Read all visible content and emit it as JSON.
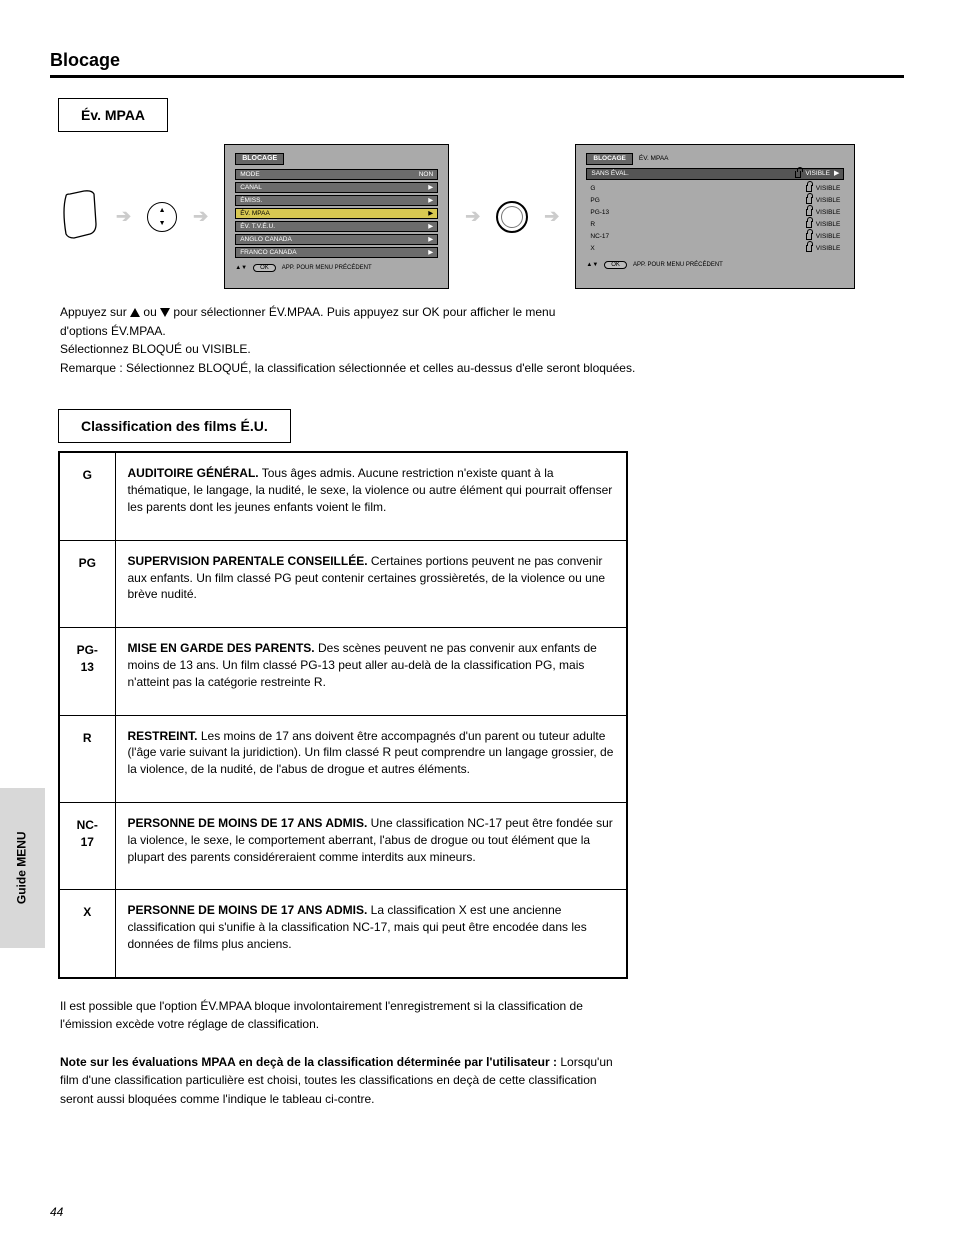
{
  "page": {
    "title": "Blocage",
    "side_tab": "Guide MENU",
    "page_number": "44"
  },
  "sections": {
    "mpaa_label": "Év. MPAA",
    "ratings_label": "Classification des films É.U."
  },
  "screen_a": {
    "title": "BLOCAGE",
    "items": [
      {
        "label": "MODE",
        "value": "NON"
      },
      {
        "label": "CANAL",
        "value": "▶"
      },
      {
        "label": "ÉMISS.",
        "value": "▶"
      },
      {
        "label": "ÉV. MPAA",
        "value": "▶",
        "selected": true
      },
      {
        "label": "ÉV. T.V.É.U.",
        "value": "▶"
      },
      {
        "label": "ANGLO CANADA",
        "value": "▶"
      },
      {
        "label": "FRANCO CANADA",
        "value": "▶"
      }
    ],
    "bottom_hint": "APP. POUR MENU PRÉCÉDENT",
    "bottom_ok": "OK"
  },
  "screen_b": {
    "breadcrumb": "BLOCAGE",
    "subtitle": "ÉV. MPAA",
    "head": "SANS ÉVAL.",
    "items": [
      {
        "label": "G",
        "value": "VISIBLE"
      },
      {
        "label": "PG",
        "value": "VISIBLE"
      },
      {
        "label": "PG-13",
        "value": "VISIBLE"
      },
      {
        "label": "R",
        "value": "VISIBLE"
      },
      {
        "label": "NC-17",
        "value": "VISIBLE"
      },
      {
        "label": "X",
        "value": "VISIBLE"
      }
    ],
    "bottom_hint": "APP. POUR MENU PRÉCÉDENT",
    "bottom_ok": "OK"
  },
  "instruction": {
    "l1_a": "Appuyez sur ",
    "l1_b": " ou ",
    "l1_c": " pour sélectionner ÉV.MPAA. Puis appuyez sur OK pour afficher le menu",
    "l2": "d'options ÉV.MPAA.",
    "l3": "Sélectionnez BLOQUÉ ou VISIBLE.",
    "l4": "Remarque : Sélectionnez BLOQUÉ, la classification sélectionnée et celles au-dessus d'elle seront bloquées."
  },
  "ratings": [
    {
      "code": "G",
      "title": "AUDITOIRE GÉNÉRAL.",
      "desc": " Tous âges admis. Aucune restriction n'existe quant à la thématique, le langage, la nudité, le sexe, la violence ou autre élément qui pourrait offenser les parents dont les jeunes enfants voient le film."
    },
    {
      "code": "PG",
      "title": "SUPERVISION PARENTALE CONSEILLÉE.",
      "desc": " Certaines portions peuvent ne pas convenir aux enfants. Un film classé PG peut contenir certaines grossièretés, de la violence ou une brève nudité."
    },
    {
      "code": "PG-13",
      "title": "MISE EN GARDE DES PARENTS.",
      "desc": " Des scènes peuvent ne pas convenir aux enfants de moins de 13 ans. Un film classé PG-13 peut aller au-delà de la classification PG, mais n'atteint pas la catégorie restreinte R."
    },
    {
      "code": "R",
      "title": "RESTREINT.",
      "desc": " Les moins de 17 ans doivent être accompagnés d'un parent ou tuteur adulte (l'âge varie suivant la juridiction). Un film classé R peut comprendre un langage grossier, de la violence, de la nudité, de l'abus de drogue et autres éléments."
    },
    {
      "code": "NC-17",
      "title": "PERSONNE DE MOINS DE 17 ANS ADMIS.",
      "desc": " Une classification NC-17 peut être fondée sur la violence, le sexe, le comportement aberrant, l'abus de drogue ou tout élément que la plupart des parents considéreraient comme interdits aux mineurs."
    },
    {
      "code": "X",
      "title": "PERSONNE DE MOINS DE 17 ANS ADMIS.",
      "desc": " La classification X est une ancienne classification qui s'unifie à la classification NC-17, mais qui peut être encodée dans les données de films plus anciens."
    }
  ],
  "notes": {
    "p1": "Il est possible que l'option ÉV.MPAA bloque involontairement l'enregistrement si la classification de l'émission excède votre réglage de classification.",
    "p2_a": "Note sur les évaluations MPAA en deçà de la classification déterminée par l'utilisateur :",
    "p2_b": "Lorsqu'un film d'une classification particulière est choisi, toutes les classifications en deçà de cette classification seront aussi bloquées comme l'indique le tableau ci-contre."
  }
}
